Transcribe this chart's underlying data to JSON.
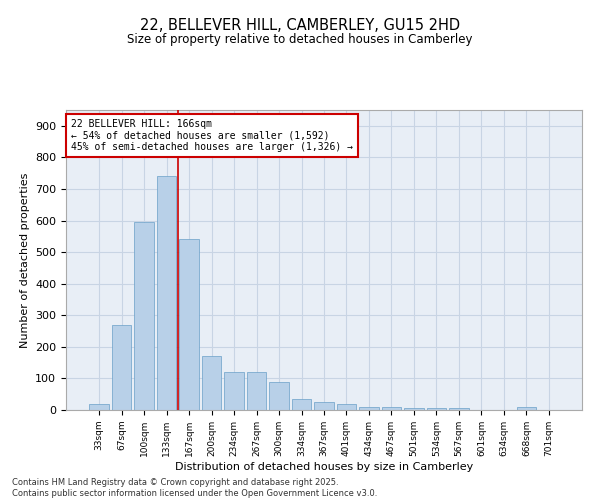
{
  "title_line1": "22, BELLEVER HILL, CAMBERLEY, GU15 2HD",
  "title_line2": "Size of property relative to detached houses in Camberley",
  "xlabel": "Distribution of detached houses by size in Camberley",
  "ylabel": "Number of detached properties",
  "categories": [
    "33sqm",
    "67sqm",
    "100sqm",
    "133sqm",
    "167sqm",
    "200sqm",
    "234sqm",
    "267sqm",
    "300sqm",
    "334sqm",
    "367sqm",
    "401sqm",
    "434sqm",
    "467sqm",
    "501sqm",
    "534sqm",
    "567sqm",
    "601sqm",
    "634sqm",
    "668sqm",
    "701sqm"
  ],
  "values": [
    20,
    270,
    595,
    740,
    540,
    170,
    120,
    120,
    90,
    35,
    25,
    20,
    10,
    10,
    5,
    5,
    5,
    0,
    0,
    10,
    0
  ],
  "bar_color": "#b8d0e8",
  "bar_edge_color": "#6aa0c8",
  "grid_color": "#c8d4e4",
  "background_color": "#e8eef6",
  "vline_color": "#cc0000",
  "vline_x_index": 3.5,
  "annotation_text": "22 BELLEVER HILL: 166sqm\n← 54% of detached houses are smaller (1,592)\n45% of semi-detached houses are larger (1,326) →",
  "annotation_box_color": "#ffffff",
  "annotation_border_color": "#cc0000",
  "ylim": [
    0,
    950
  ],
  "yticks": [
    0,
    100,
    200,
    300,
    400,
    500,
    600,
    700,
    800,
    900
  ],
  "footer_line1": "Contains HM Land Registry data © Crown copyright and database right 2025.",
  "footer_line2": "Contains public sector information licensed under the Open Government Licence v3.0."
}
